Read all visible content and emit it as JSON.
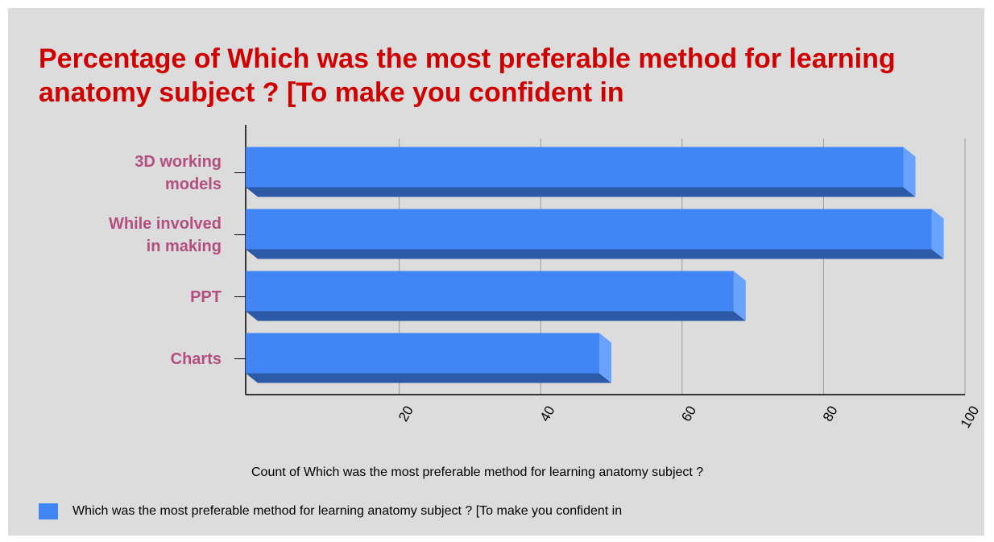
{
  "chart_data": {
    "type": "bar3d_horizontal",
    "title": "Percentage of Which was the most preferable method for learning anatomy subject ? [To make you confident in",
    "categories": [
      "3D working models",
      "While involved in making",
      "PPT",
      "Charts"
    ],
    "series": [
      {
        "name": "Which was the most preferable method for learning anatomy subject ? [To make you confident in",
        "color": "#4285f4",
        "values": [
          93,
          97,
          69,
          50
        ]
      }
    ],
    "x_label": "Count of Which was the most preferable method for learning anatomy subject ?",
    "xlim": [
      0,
      100
    ],
    "xticks": [
      20,
      40,
      60,
      80,
      100
    ],
    "grid": true
  }
}
